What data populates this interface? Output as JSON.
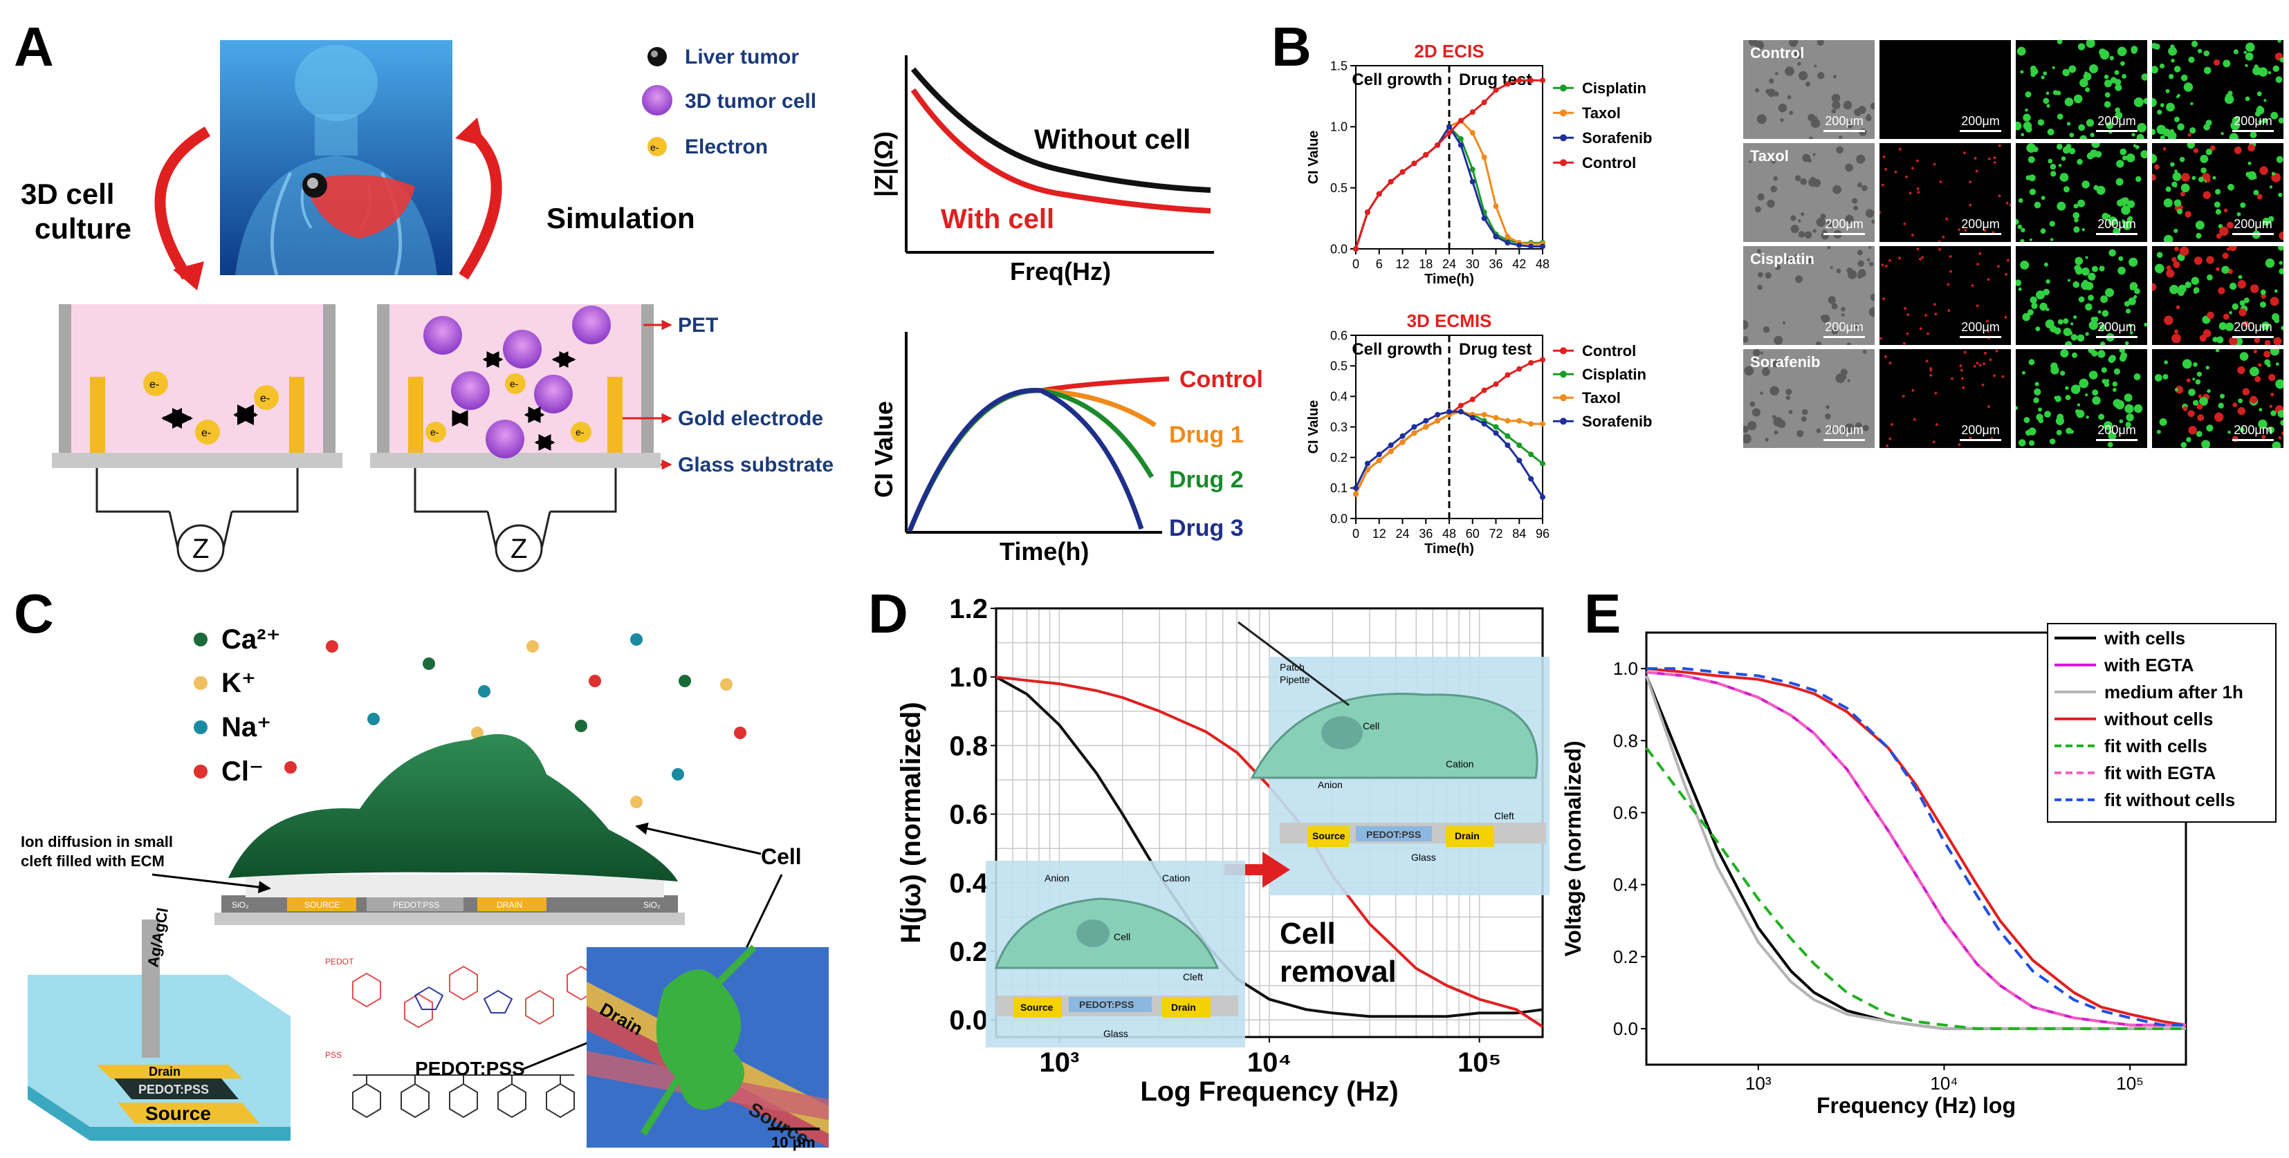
{
  "panels": {
    "a": "A",
    "b": "B",
    "c": "C",
    "d": "D",
    "e": "E"
  },
  "panelA": {
    "legend": [
      "Liver tumor",
      "3D tumor cell",
      "Electron"
    ],
    "electron_symbol": "e-",
    "left_cycle": [
      "3D cell",
      "culture"
    ],
    "right_cycle": "Simulation",
    "impedance_symbol": "Z",
    "layers": [
      "PET",
      "Gold electrode",
      "Glass substrate"
    ],
    "imp_plot": {
      "ylabel": "|Z|(Ω)",
      "xlabel": "Freq(Hz)",
      "without": "Without cell",
      "with": "With cell"
    },
    "ci_plot": {
      "ylabel": "CI Value",
      "xlabel": "Time(h)",
      "curves": [
        "Control",
        "Drug 1",
        "Drug 2",
        "Drug 3"
      ]
    }
  },
  "chart_data": [
    {
      "type": "line",
      "title": "2D ECIS",
      "xlabel": "Time(h)",
      "ylabel": "CI Value",
      "xlim": [
        0,
        48
      ],
      "ylim": [
        0,
        1.5
      ],
      "xticks": [
        "0",
        "6",
        "12",
        "18",
        "24",
        "30",
        "36",
        "42",
        "48"
      ],
      "yticks": [
        "0.0",
        "0.5",
        "1.0",
        "1.5"
      ],
      "annotations": [
        "Cell growth",
        "Drug test"
      ],
      "divider_x": 24,
      "x": [
        0,
        3,
        6,
        9,
        12,
        15,
        18,
        21,
        24,
        27,
        30,
        33,
        36,
        39,
        42,
        45,
        48
      ],
      "series": [
        {
          "name": "Cisplatin",
          "color": "#1a9a2a",
          "values": [
            0,
            0.3,
            0.45,
            0.55,
            0.63,
            0.7,
            0.77,
            0.85,
            1.0,
            0.9,
            0.65,
            0.3,
            0.12,
            0.07,
            0.05,
            0.05,
            0.05
          ]
        },
        {
          "name": "Taxol",
          "color": "#f08a1a",
          "values": [
            0,
            0.3,
            0.45,
            0.55,
            0.63,
            0.7,
            0.77,
            0.85,
            1.0,
            1.05,
            0.95,
            0.75,
            0.35,
            0.1,
            0.05,
            0.04,
            0.04
          ]
        },
        {
          "name": "Sorafenib",
          "color": "#1e2f9a",
          "values": [
            0,
            0.3,
            0.45,
            0.55,
            0.63,
            0.7,
            0.77,
            0.85,
            1.0,
            0.85,
            0.55,
            0.25,
            0.1,
            0.05,
            0.03,
            0.02,
            0.02
          ]
        },
        {
          "name": "Control",
          "color": "#e02020",
          "values": [
            0,
            0.3,
            0.45,
            0.55,
            0.63,
            0.7,
            0.77,
            0.85,
            0.95,
            1.05,
            1.12,
            1.2,
            1.3,
            1.35,
            1.38,
            1.38,
            1.38
          ]
        }
      ]
    },
    {
      "type": "line",
      "title": "3D ECMIS",
      "xlabel": "Time(h)",
      "ylabel": "CI Value",
      "xlim": [
        0,
        96
      ],
      "ylim": [
        0,
        0.6
      ],
      "xticks": [
        "0",
        "12",
        "24",
        "36",
        "48",
        "60",
        "72",
        "84",
        "96"
      ],
      "yticks": [
        "0.0",
        "0.1",
        "0.2",
        "0.3",
        "0.4",
        "0.5",
        "0.6"
      ],
      "annotations": [
        "Cell growth",
        "Drug test"
      ],
      "divider_x": 48,
      "x": [
        0,
        6,
        12,
        18,
        24,
        30,
        36,
        42,
        48,
        54,
        60,
        66,
        72,
        78,
        84,
        90,
        96
      ],
      "series": [
        {
          "name": "Control",
          "color": "#e02020",
          "values": [
            0.08,
            0.16,
            0.19,
            0.22,
            0.25,
            0.28,
            0.3,
            0.32,
            0.34,
            0.37,
            0.39,
            0.42,
            0.44,
            0.47,
            0.49,
            0.51,
            0.52
          ]
        },
        {
          "name": "Cisplatin",
          "color": "#1a9a2a",
          "values": [
            0.08,
            0.16,
            0.19,
            0.22,
            0.25,
            0.28,
            0.3,
            0.32,
            0.34,
            0.35,
            0.34,
            0.32,
            0.3,
            0.27,
            0.24,
            0.21,
            0.18
          ]
        },
        {
          "name": "Taxol",
          "color": "#f08a1a",
          "values": [
            0.08,
            0.16,
            0.19,
            0.22,
            0.25,
            0.28,
            0.3,
            0.32,
            0.34,
            0.35,
            0.34,
            0.34,
            0.33,
            0.32,
            0.32,
            0.31,
            0.31
          ]
        },
        {
          "name": "Sorafenib",
          "color": "#1e2f9a",
          "values": [
            0.1,
            0.18,
            0.21,
            0.24,
            0.27,
            0.3,
            0.32,
            0.34,
            0.35,
            0.35,
            0.33,
            0.31,
            0.28,
            0.24,
            0.19,
            0.13,
            0.07
          ]
        }
      ]
    },
    {
      "type": "line",
      "title": "",
      "xlabel": "Log Frequency (Hz)",
      "ylabel": "H(jω) (normalized)",
      "xscale": "log",
      "xlim": [
        500,
        200000
      ],
      "ylim": [
        -0.05,
        1.2
      ],
      "xticks": [
        "10³",
        "10⁴",
        "10⁵"
      ],
      "yticks": [
        "0.0",
        "0.2",
        "0.4",
        "0.6",
        "0.8",
        "1.0",
        "1.2"
      ],
      "x": [
        500,
        700,
        1000,
        1500,
        2000,
        3000,
        5000,
        7000,
        10000,
        15000,
        20000,
        30000,
        50000,
        70000,
        100000,
        150000,
        200000
      ],
      "series": [
        {
          "name": "with cell",
          "color": "#111111",
          "values": [
            1.0,
            0.95,
            0.86,
            0.72,
            0.6,
            0.42,
            0.22,
            0.12,
            0.06,
            0.03,
            0.02,
            0.01,
            0.01,
            0.01,
            0.02,
            0.02,
            0.03
          ]
        },
        {
          "name": "cell removal",
          "color": "#e02020",
          "values": [
            1.0,
            0.99,
            0.98,
            0.96,
            0.94,
            0.9,
            0.84,
            0.78,
            0.68,
            0.55,
            0.42,
            0.28,
            0.15,
            0.1,
            0.06,
            0.03,
            -0.02
          ]
        }
      ]
    },
    {
      "type": "line",
      "title": "",
      "xlabel": "Frequency (Hz) log",
      "ylabel": "Voltage (normalized)",
      "xscale": "log",
      "xlim": [
        250,
        200000
      ],
      "ylim": [
        -0.1,
        1.1
      ],
      "xticks": [
        "10³",
        "10⁴",
        "10⁵"
      ],
      "yticks": [
        "0.0",
        "0.2",
        "0.4",
        "0.6",
        "0.8",
        "1.0"
      ],
      "x": [
        250,
        400,
        600,
        1000,
        1500,
        2000,
        3000,
        5000,
        7000,
        10000,
        15000,
        20000,
        30000,
        50000,
        70000,
        100000,
        150000,
        200000
      ],
      "series": [
        {
          "name": "with cells",
          "color": "#000000",
          "dash": false,
          "values": [
            0.98,
            0.72,
            0.5,
            0.28,
            0.16,
            0.1,
            0.05,
            0.02,
            0.01,
            0.0,
            0.0,
            0.0,
            0.0,
            0.0,
            0.0,
            0.0,
            0.0,
            0.0
          ]
        },
        {
          "name": "with EGTA",
          "color": "#d21ad2",
          "dash": false,
          "values": [
            0.99,
            0.98,
            0.96,
            0.92,
            0.87,
            0.82,
            0.72,
            0.55,
            0.43,
            0.3,
            0.18,
            0.12,
            0.06,
            0.03,
            0.02,
            0.01,
            0.01,
            0.01
          ]
        },
        {
          "name": "medium after 1h",
          "color": "#b4b4b4",
          "dash": false,
          "values": [
            0.98,
            0.68,
            0.45,
            0.24,
            0.13,
            0.08,
            0.04,
            0.02,
            0.01,
            0.0,
            0.0,
            0.0,
            0.0,
            0.0,
            0.0,
            0.0,
            0.0,
            0.0
          ]
        },
        {
          "name": "without cells",
          "color": "#e02020",
          "dash": false,
          "values": [
            1.0,
            0.99,
            0.98,
            0.97,
            0.95,
            0.93,
            0.88,
            0.78,
            0.68,
            0.55,
            0.4,
            0.3,
            0.19,
            0.1,
            0.06,
            0.04,
            0.02,
            0.01
          ]
        },
        {
          "name": "fit with cells",
          "color": "#22b022",
          "dash": true,
          "values": [
            0.78,
            0.64,
            0.52,
            0.36,
            0.25,
            0.18,
            0.1,
            0.04,
            0.02,
            0.01,
            0.0,
            0.0,
            0.0,
            0.0,
            0.0,
            0.0,
            0.0,
            0.0
          ]
        },
        {
          "name": "fit with EGTA",
          "color": "#f060c0",
          "dash": true,
          "values": [
            0.99,
            0.98,
            0.96,
            0.92,
            0.87,
            0.82,
            0.72,
            0.55,
            0.43,
            0.3,
            0.18,
            0.12,
            0.06,
            0.03,
            0.02,
            0.01,
            0.01,
            0.01
          ]
        },
        {
          "name": "fit without cells",
          "color": "#2050e0",
          "dash": true,
          "values": [
            1.0,
            1.0,
            0.99,
            0.98,
            0.96,
            0.94,
            0.89,
            0.78,
            0.67,
            0.52,
            0.37,
            0.27,
            0.16,
            0.08,
            0.05,
            0.03,
            0.01,
            0.01
          ]
        }
      ]
    }
  ],
  "panelB": {
    "micro_rows": [
      "Control",
      "Taxol",
      "Cisplatin",
      "Sorafenib"
    ],
    "scale": "200μm"
  },
  "panelC": {
    "ions": [
      "Ca²⁺",
      "K⁺",
      "Na⁺",
      "Cl⁻"
    ],
    "ion_colors": [
      "#1a6a3a",
      "#f0c060",
      "#1a8aa0",
      "#e03030"
    ],
    "diffusion_label": [
      "Ion diffusion in small",
      "cleft filled with ECM"
    ],
    "cell_label": "Cell",
    "pedot_label": "PEDOT:PSS",
    "small_labels": [
      "Ag/AgCl",
      "Drain",
      "PEDOT:PSS",
      "Source"
    ],
    "sem_labels": [
      "Drain",
      "Source"
    ],
    "scalebar": "10 μm",
    "chip_labels": [
      "SiO₂",
      "SOURCE",
      "PEDOT:PSS",
      "DRAIN",
      "SiO₂"
    ],
    "chem_labels": [
      "PEDOT",
      "PSS"
    ]
  },
  "panelD": {
    "cell_removal": [
      "Cell",
      "removal"
    ],
    "inset": {
      "pipette": [
        "Patch",
        "Pipette"
      ],
      "cell": "Cell",
      "anion": "Anion",
      "cation": "Cation",
      "cleft": "Cleft",
      "source": "Source",
      "pedot": "PEDOT:PSS",
      "drain": "Drain",
      "glass": "Glass"
    }
  }
}
